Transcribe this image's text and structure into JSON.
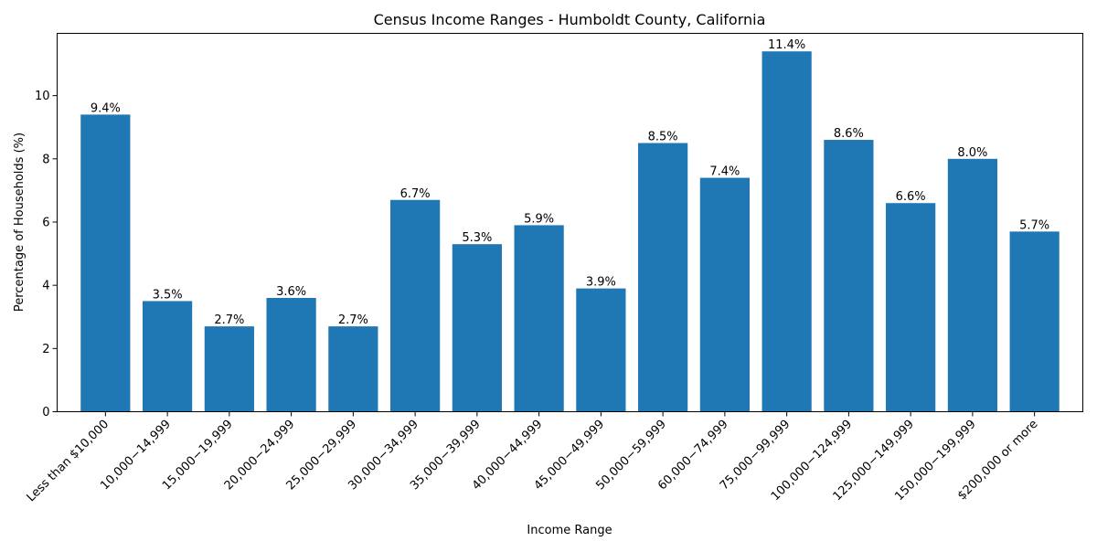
{
  "chart_data": {
    "type": "bar",
    "title": "Census Income Ranges - Humboldt County, California",
    "xlabel": "Income Range",
    "ylabel": "Percentage of Households (%)",
    "categories": [
      "Less than $10,000",
      "10,000−14,999",
      "15,000−19,999",
      "20,000−24,999",
      "25,000−29,999",
      "30,000−34,999",
      "35,000−39,999",
      "40,000−44,999",
      "45,000−49,999",
      "50,000−59,999",
      "60,000−74,999",
      "75,000−99,999",
      "100,000−124,999",
      "125,000−149,999",
      "150,000−199,999",
      "$200,000 or more"
    ],
    "values": [
      9.4,
      3.5,
      2.7,
      3.6,
      2.7,
      6.7,
      5.3,
      5.9,
      3.9,
      8.5,
      7.4,
      11.4,
      8.6,
      6.6,
      8.0,
      5.7
    ],
    "value_labels": [
      "9.4%",
      "3.5%",
      "2.7%",
      "3.6%",
      "2.7%",
      "6.7%",
      "5.3%",
      "5.9%",
      "3.9%",
      "8.5%",
      "7.4%",
      "11.4%",
      "8.6%",
      "6.6%",
      "8.0%",
      "5.7%"
    ],
    "yticks": [
      0,
      2,
      4,
      6,
      8,
      10
    ],
    "ylim": [
      0,
      11.97
    ],
    "grid": false,
    "legend": "none",
    "bar_color": "#1f77b4"
  }
}
